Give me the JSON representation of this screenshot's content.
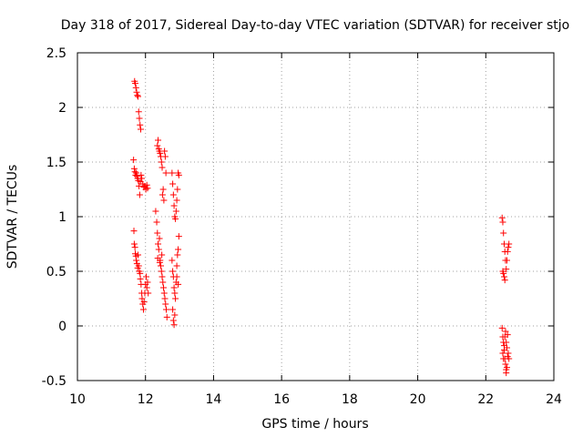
{
  "chart_data": {
    "type": "scatter",
    "title": "Day 318 of 2017, Sidereal Day-to-day VTEC variation (SDTVAR) for receiver stjo",
    "xlabel": "GPS time / hours",
    "ylabel": "SDTVAR / TECUs",
    "xlim": [
      10,
      24
    ],
    "ylim": [
      -0.5,
      2.5
    ],
    "x_ticks": [
      10,
      12,
      14,
      16,
      18,
      20,
      22,
      24
    ],
    "y_ticks": [
      -0.5,
      0,
      0.5,
      1,
      1.5,
      2,
      2.5
    ],
    "x_tick_labels": [
      "10",
      "12",
      "14",
      "16",
      "18",
      "20",
      "22",
      "24"
    ],
    "y_tick_labels": [
      "-0.5",
      "0",
      "0.5",
      "1",
      "1.5",
      "2",
      "2.5"
    ],
    "grid": true,
    "marker": "+",
    "marker_color": "#ff0000",
    "series": [
      {
        "name": "SDTVAR",
        "points": [
          [
            11.68,
            2.24
          ],
          [
            11.7,
            2.22
          ],
          [
            11.72,
            2.18
          ],
          [
            11.74,
            2.14
          ],
          [
            11.76,
            2.11
          ],
          [
            11.78,
            2.1
          ],
          [
            11.8,
            1.96
          ],
          [
            11.82,
            1.9
          ],
          [
            11.84,
            1.84
          ],
          [
            11.86,
            1.8
          ],
          [
            11.65,
            1.52
          ],
          [
            11.67,
            1.44
          ],
          [
            11.69,
            1.41
          ],
          [
            11.71,
            1.38
          ],
          [
            11.73,
            1.4
          ],
          [
            11.75,
            1.37
          ],
          [
            11.77,
            1.35
          ],
          [
            11.79,
            1.33
          ],
          [
            11.81,
            1.28
          ],
          [
            11.83,
            1.2
          ],
          [
            11.85,
            1.32
          ],
          [
            11.87,
            1.38
          ],
          [
            11.89,
            1.35
          ],
          [
            11.92,
            1.3
          ],
          [
            11.95,
            1.27
          ],
          [
            11.98,
            1.28
          ],
          [
            12.01,
            1.25
          ],
          [
            12.04,
            1.29
          ],
          [
            12.06,
            1.26
          ],
          [
            11.66,
            0.87
          ],
          [
            11.67,
            0.75
          ],
          [
            11.69,
            0.72
          ],
          [
            11.7,
            0.66
          ],
          [
            11.72,
            0.64
          ],
          [
            11.73,
            0.6
          ],
          [
            11.75,
            0.57
          ],
          [
            11.77,
            0.53
          ],
          [
            11.78,
            0.65
          ],
          [
            11.8,
            0.55
          ],
          [
            11.82,
            0.5
          ],
          [
            11.84,
            0.48
          ],
          [
            11.85,
            0.43
          ],
          [
            11.87,
            0.38
          ],
          [
            11.89,
            0.3
          ],
          [
            11.9,
            0.25
          ],
          [
            11.92,
            0.2
          ],
          [
            11.94,
            0.15
          ],
          [
            11.96,
            0.22
          ],
          [
            11.98,
            0.3
          ],
          [
            12.0,
            0.38
          ],
          [
            12.02,
            0.45
          ],
          [
            12.04,
            0.35
          ],
          [
            12.06,
            0.4
          ],
          [
            12.08,
            0.3
          ],
          [
            12.35,
            1.65
          ],
          [
            12.37,
            1.7
          ],
          [
            12.39,
            1.62
          ],
          [
            12.41,
            1.6
          ],
          [
            12.43,
            1.58
          ],
          [
            12.45,
            1.55
          ],
          [
            12.47,
            1.5
          ],
          [
            12.49,
            1.45
          ],
          [
            12.5,
            1.2
          ],
          [
            12.52,
            1.25
          ],
          [
            12.54,
            1.15
          ],
          [
            12.56,
            1.6
          ],
          [
            12.58,
            1.55
          ],
          [
            12.6,
            1.4
          ],
          [
            12.3,
            1.05
          ],
          [
            12.33,
            0.95
          ],
          [
            12.35,
            0.85
          ],
          [
            12.37,
            0.75
          ],
          [
            12.39,
            0.7
          ],
          [
            12.41,
            0.8
          ],
          [
            12.43,
            0.6
          ],
          [
            12.45,
            0.55
          ],
          [
            12.47,
            0.5
          ],
          [
            12.49,
            0.45
          ],
          [
            12.51,
            0.4
          ],
          [
            12.53,
            0.35
          ],
          [
            12.55,
            0.3
          ],
          [
            12.57,
            0.25
          ],
          [
            12.59,
            0.2
          ],
          [
            12.61,
            0.15
          ],
          [
            12.63,
            0.08
          ],
          [
            12.36,
            0.62
          ],
          [
            12.42,
            0.58
          ],
          [
            12.48,
            0.65
          ],
          [
            12.78,
            1.4
          ],
          [
            12.8,
            1.3
          ],
          [
            12.82,
            1.2
          ],
          [
            12.84,
            1.1
          ],
          [
            12.86,
            1.0
          ],
          [
            12.88,
            0.98
          ],
          [
            12.9,
            1.05
          ],
          [
            12.92,
            1.15
          ],
          [
            12.94,
            1.25
          ],
          [
            12.96,
            1.4
          ],
          [
            12.98,
            1.38
          ],
          [
            12.78,
            0.6
          ],
          [
            12.8,
            0.5
          ],
          [
            12.82,
            0.45
          ],
          [
            12.84,
            0.35
          ],
          [
            12.86,
            0.3
          ],
          [
            12.88,
            0.25
          ],
          [
            12.9,
            0.4
          ],
          [
            12.92,
            0.55
          ],
          [
            12.94,
            0.65
          ],
          [
            12.96,
            0.7
          ],
          [
            12.98,
            0.82
          ],
          [
            12.8,
            0.15
          ],
          [
            12.82,
            0.05
          ],
          [
            12.84,
            0.01
          ],
          [
            12.86,
            0.1
          ],
          [
            12.92,
            0.45
          ],
          [
            12.96,
            0.38
          ],
          [
            22.48,
            0.99
          ],
          [
            22.5,
            0.95
          ],
          [
            22.52,
            0.85
          ],
          [
            22.54,
            0.75
          ],
          [
            22.56,
            0.68
          ],
          [
            22.58,
            0.6
          ],
          [
            22.5,
            0.5
          ],
          [
            22.52,
            0.48
          ],
          [
            22.54,
            0.45
          ],
          [
            22.56,
            0.42
          ],
          [
            22.6,
            0.52
          ],
          [
            22.62,
            0.6
          ],
          [
            22.64,
            0.68
          ],
          [
            22.66,
            0.72
          ],
          [
            22.68,
            0.75
          ],
          [
            22.48,
            -0.02
          ],
          [
            22.5,
            -0.1
          ],
          [
            22.52,
            -0.15
          ],
          [
            22.54,
            -0.22
          ],
          [
            22.56,
            -0.3
          ],
          [
            22.58,
            -0.35
          ],
          [
            22.6,
            -0.4
          ],
          [
            22.62,
            -0.38
          ],
          [
            22.5,
            -0.25
          ],
          [
            22.52,
            -0.3
          ],
          [
            22.54,
            -0.18
          ],
          [
            22.56,
            -0.1
          ],
          [
            22.58,
            -0.05
          ],
          [
            22.6,
            -0.15
          ],
          [
            22.62,
            -0.2
          ],
          [
            22.64,
            -0.28
          ],
          [
            22.66,
            -0.25
          ],
          [
            22.68,
            -0.3
          ],
          [
            22.64,
            -0.08
          ],
          [
            22.6,
            -0.43
          ]
        ]
      }
    ]
  }
}
